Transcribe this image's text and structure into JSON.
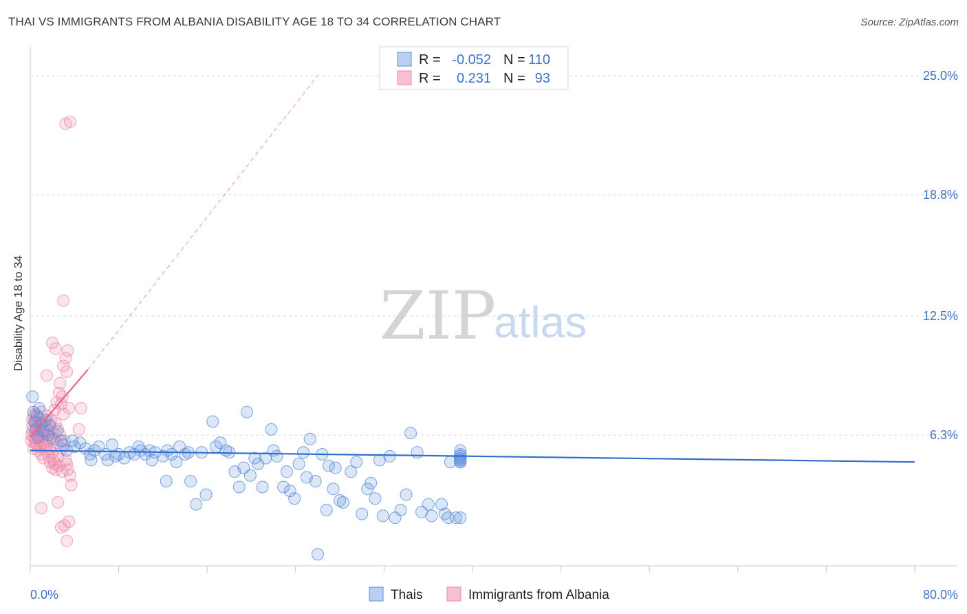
{
  "header": {
    "title": "THAI VS IMMIGRANTS FROM ALBANIA DISABILITY AGE 18 TO 34 CORRELATION CHART",
    "source": "Source: ZipAtlas.com"
  },
  "watermark": {
    "zip": "ZIP",
    "atlas": "atlas"
  },
  "legend_top": {
    "rows": [
      {
        "r_label": "R =",
        "r_value": "-0.052",
        "n_label": "N =",
        "n_value": "110"
      },
      {
        "r_label": "R =",
        "r_value": "0.231",
        "n_label": "N =",
        "n_value": "93"
      }
    ]
  },
  "legend_bottom": {
    "items": [
      "Thais",
      "Immigrants from Albania"
    ]
  },
  "chart_data": {
    "type": "scatter",
    "title": "THAI VS IMMIGRANTS FROM ALBANIA DISABILITY AGE 18 TO 34 CORRELATION CHART",
    "xlabel": "",
    "ylabel": "Disability Age 18 to 34",
    "xlim": [
      0,
      80
    ],
    "ylim": [
      -0.5,
      26.5
    ],
    "x_tick_labels": [
      "0.0%",
      "80.0%"
    ],
    "y_ticks": [
      6.3,
      12.5,
      18.8,
      25.0
    ],
    "y_tick_labels": [
      "6.3%",
      "12.5%",
      "18.8%",
      "25.0%"
    ],
    "colors": {
      "thais": "#5b8fd9",
      "albania": "#ef87a8",
      "thais_line": "#2f6fce",
      "albania_line": "#e8628c"
    },
    "series": [
      {
        "name": "Thais",
        "r": -0.052,
        "n": 110,
        "trend": {
          "x0": 0,
          "y0": 5.5,
          "x1": 80,
          "y1": 4.9
        },
        "points": [
          [
            0.2,
            8.3
          ],
          [
            0.3,
            7.5
          ],
          [
            0.4,
            7.0
          ],
          [
            0.5,
            6.6
          ],
          [
            0.6,
            7.3
          ],
          [
            0.7,
            6.2
          ],
          [
            0.8,
            7.7
          ],
          [
            1.0,
            6.9
          ],
          [
            1.2,
            6.5
          ],
          [
            1.4,
            7.1
          ],
          [
            1.6,
            6.3
          ],
          [
            1.8,
            6.8
          ],
          [
            2.0,
            6.1
          ],
          [
            2.4,
            6.5
          ],
          [
            2.8,
            6.0
          ],
          [
            3.0,
            5.8
          ],
          [
            3.3,
            5.5
          ],
          [
            3.8,
            6.0
          ],
          [
            4.0,
            5.7
          ],
          [
            4.5,
            5.9
          ],
          [
            5.0,
            5.6
          ],
          [
            5.4,
            5.3
          ],
          [
            5.5,
            5.0
          ],
          [
            5.8,
            5.5
          ],
          [
            6.2,
            5.7
          ],
          [
            6.8,
            5.3
          ],
          [
            7.0,
            5.0
          ],
          [
            7.4,
            5.8
          ],
          [
            7.7,
            5.2
          ],
          [
            8.0,
            5.3
          ],
          [
            8.5,
            5.1
          ],
          [
            9.0,
            5.4
          ],
          [
            9.4,
            5.3
          ],
          [
            9.8,
            5.7
          ],
          [
            10.0,
            5.5
          ],
          [
            10.4,
            5.3
          ],
          [
            10.8,
            5.5
          ],
          [
            11.0,
            5.0
          ],
          [
            11.3,
            5.4
          ],
          [
            12.0,
            5.2
          ],
          [
            12.3,
            3.9
          ],
          [
            12.4,
            5.5
          ],
          [
            12.8,
            5.3
          ],
          [
            13.2,
            4.9
          ],
          [
            13.5,
            5.7
          ],
          [
            14.0,
            5.3
          ],
          [
            14.3,
            5.4
          ],
          [
            14.5,
            3.9
          ],
          [
            15.0,
            2.7
          ],
          [
            15.5,
            5.4
          ],
          [
            15.9,
            3.2
          ],
          [
            16.5,
            7.0
          ],
          [
            16.8,
            5.7
          ],
          [
            17.2,
            5.9
          ],
          [
            17.7,
            5.5
          ],
          [
            18.0,
            5.4
          ],
          [
            18.5,
            4.4
          ],
          [
            18.9,
            3.6
          ],
          [
            19.3,
            4.6
          ],
          [
            19.6,
            7.5
          ],
          [
            19.9,
            4.2
          ],
          [
            20.3,
            5.1
          ],
          [
            20.6,
            4.8
          ],
          [
            21.0,
            3.6
          ],
          [
            21.3,
            5.1
          ],
          [
            21.8,
            6.6
          ],
          [
            22.0,
            5.5
          ],
          [
            22.3,
            5.2
          ],
          [
            22.9,
            3.6
          ],
          [
            23.2,
            4.4
          ],
          [
            23.5,
            3.4
          ],
          [
            23.9,
            3.0
          ],
          [
            24.3,
            4.8
          ],
          [
            24.7,
            5.4
          ],
          [
            25.0,
            4.1
          ],
          [
            25.3,
            6.1
          ],
          [
            25.8,
            3.9
          ],
          [
            26.0,
            0.1
          ],
          [
            26.4,
            5.3
          ],
          [
            26.8,
            2.4
          ],
          [
            27.0,
            4.7
          ],
          [
            27.4,
            3.5
          ],
          [
            27.6,
            4.6
          ],
          [
            28.0,
            2.9
          ],
          [
            28.3,
            2.8
          ],
          [
            29.0,
            4.4
          ],
          [
            29.5,
            4.9
          ],
          [
            30.0,
            2.2
          ],
          [
            30.5,
            3.5
          ],
          [
            30.8,
            3.8
          ],
          [
            31.2,
            3.0
          ],
          [
            31.6,
            5.0
          ],
          [
            31.9,
            2.1
          ],
          [
            32.5,
            5.2
          ],
          [
            33.0,
            2.0
          ],
          [
            33.5,
            2.4
          ],
          [
            34.0,
            3.2
          ],
          [
            34.4,
            6.4
          ],
          [
            35.0,
            5.4
          ],
          [
            35.4,
            2.3
          ],
          [
            36.0,
            2.7
          ],
          [
            36.3,
            2.1
          ],
          [
            37.2,
            2.7
          ],
          [
            37.5,
            2.2
          ],
          [
            37.8,
            2.0
          ],
          [
            38.0,
            4.9
          ],
          [
            38.5,
            2.0
          ],
          [
            38.9,
            5.0
          ],
          [
            38.9,
            5.5
          ],
          [
            38.9,
            2.0
          ],
          [
            38.9,
            5.2
          ],
          [
            38.9,
            4.9
          ],
          [
            38.9,
            4.9
          ],
          [
            38.9,
            5.0
          ],
          [
            38.9,
            5.1
          ],
          [
            38.9,
            5.3
          ]
        ]
      },
      {
        "name": "Immigrants from Albania",
        "r": 0.231,
        "n": 93,
        "trend": {
          "x0": 0,
          "y0": 6.2,
          "x1": 5.2,
          "y1": 9.7
        },
        "trend_extension": {
          "x0": 5.2,
          "y0": 9.7,
          "x1": 26.0,
          "y1": 25.0
        },
        "points": [
          [
            0.1,
            6.3
          ],
          [
            0.1,
            6.0
          ],
          [
            0.2,
            6.8
          ],
          [
            0.2,
            6.5
          ],
          [
            0.2,
            7.1
          ],
          [
            0.3,
            5.6
          ],
          [
            0.3,
            6.2
          ],
          [
            0.3,
            7.3
          ],
          [
            0.4,
            6.4
          ],
          [
            0.4,
            5.9
          ],
          [
            0.4,
            6.9
          ],
          [
            0.5,
            6.6
          ],
          [
            0.5,
            7.4
          ],
          [
            0.5,
            6.1
          ],
          [
            0.6,
            6.7
          ],
          [
            0.6,
            5.8
          ],
          [
            0.6,
            7.0
          ],
          [
            0.7,
            6.3
          ],
          [
            0.7,
            6.9
          ],
          [
            0.7,
            5.5
          ],
          [
            0.8,
            7.2
          ],
          [
            0.8,
            6.5
          ],
          [
            0.8,
            6.0
          ],
          [
            0.9,
            6.8
          ],
          [
            0.9,
            5.7
          ],
          [
            1.0,
            6.4
          ],
          [
            1.0,
            7.5
          ],
          [
            1.0,
            5.3
          ],
          [
            1.1,
            6.1
          ],
          [
            1.1,
            6.9
          ],
          [
            1.2,
            5.9
          ],
          [
            1.2,
            6.6
          ],
          [
            1.2,
            5.1
          ],
          [
            1.3,
            7.0
          ],
          [
            1.3,
            6.3
          ],
          [
            1.4,
            5.5
          ],
          [
            1.4,
            6.7
          ],
          [
            1.5,
            5.8
          ],
          [
            1.5,
            7.3
          ],
          [
            1.6,
            6.0
          ],
          [
            1.6,
            6.5
          ],
          [
            1.7,
            5.2
          ],
          [
            1.7,
            6.8
          ],
          [
            1.8,
            5.6
          ],
          [
            1.8,
            4.9
          ],
          [
            1.9,
            6.2
          ],
          [
            1.9,
            7.1
          ],
          [
            2.0,
            5.4
          ],
          [
            2.0,
            4.6
          ],
          [
            2.1,
            6.4
          ],
          [
            2.1,
            5.0
          ],
          [
            2.2,
            7.6
          ],
          [
            2.2,
            4.8
          ],
          [
            2.3,
            6.9
          ],
          [
            2.3,
            4.5
          ],
          [
            2.4,
            5.9
          ],
          [
            2.4,
            8.0
          ],
          [
            2.5,
            6.6
          ],
          [
            2.5,
            5.2
          ],
          [
            2.6,
            8.5
          ],
          [
            2.6,
            4.7
          ],
          [
            2.7,
            9.0
          ],
          [
            2.7,
            6.3
          ],
          [
            2.8,
            7.9
          ],
          [
            2.8,
            5.6
          ],
          [
            2.9,
            8.3
          ],
          [
            2.9,
            4.4
          ],
          [
            3.0,
            7.4
          ],
          [
            3.1,
            6.0
          ],
          [
            3.2,
            5.0
          ],
          [
            3.3,
            4.8
          ],
          [
            3.3,
            9.6
          ],
          [
            3.4,
            4.5
          ],
          [
            3.5,
            7.7
          ],
          [
            3.6,
            4.2
          ],
          [
            3.7,
            3.7
          ],
          [
            1.0,
            2.5
          ],
          [
            1.5,
            9.4
          ],
          [
            2.0,
            11.1
          ],
          [
            2.3,
            10.8
          ],
          [
            3.0,
            9.9
          ],
          [
            3.2,
            10.3
          ],
          [
            3.4,
            10.7
          ],
          [
            3.0,
            13.3
          ],
          [
            3.2,
            22.5
          ],
          [
            3.6,
            22.6
          ],
          [
            2.5,
            2.8
          ],
          [
            2.8,
            1.5
          ],
          [
            3.1,
            1.6
          ],
          [
            3.3,
            0.8
          ],
          [
            3.5,
            1.8
          ],
          [
            4.6,
            7.7
          ],
          [
            4.4,
            6.6
          ]
        ]
      }
    ]
  }
}
